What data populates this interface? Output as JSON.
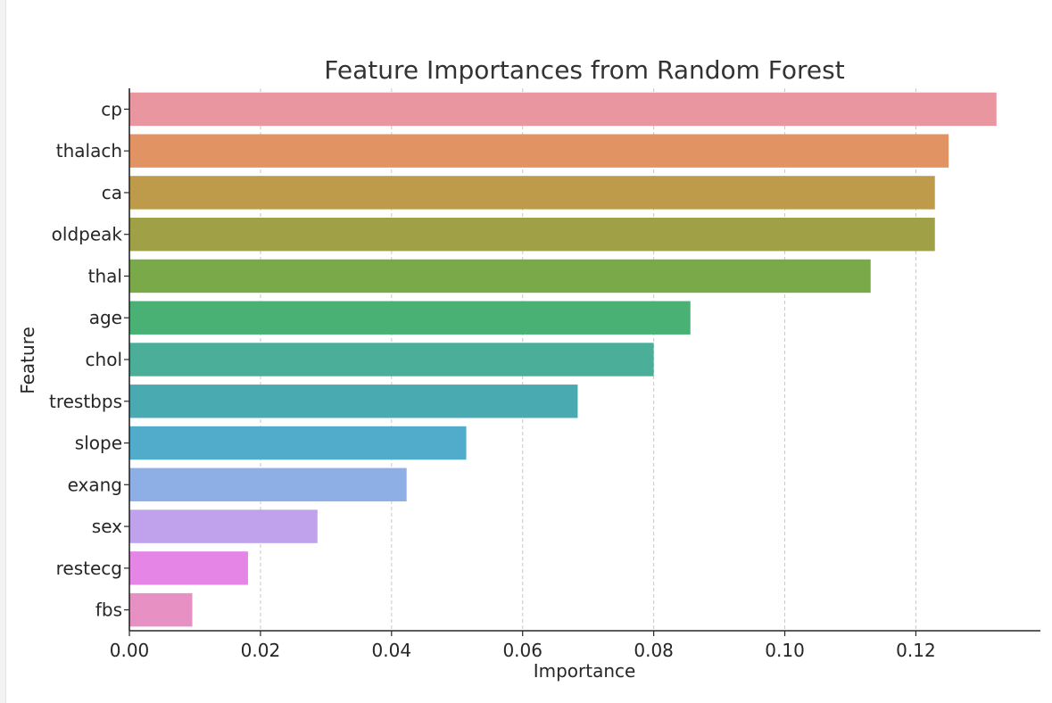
{
  "chart_data": {
    "type": "bar",
    "orientation": "horizontal",
    "title": "Feature Importances from Random Forest",
    "xlabel": "Importance",
    "ylabel": "Feature",
    "xlim": [
      0,
      0.139
    ],
    "xticks": [
      0.0,
      0.02,
      0.04,
      0.06,
      0.08,
      0.1,
      0.12
    ],
    "xtick_labels": [
      "0.00",
      "0.02",
      "0.04",
      "0.06",
      "0.08",
      "0.10",
      "0.12"
    ],
    "grid": "vertical dashed",
    "categories": [
      "cp",
      "thalach",
      "ca",
      "oldpeak",
      "thal",
      "age",
      "chol",
      "trestbps",
      "slope",
      "exang",
      "sex",
      "restecg",
      "fbs"
    ],
    "values": [
      0.1323,
      0.125,
      0.1229,
      0.1229,
      0.1131,
      0.0856,
      0.08,
      0.0684,
      0.0514,
      0.0423,
      0.0287,
      0.0181,
      0.0096
    ],
    "colors": [
      "#e996a0",
      "#e29363",
      "#bd9b4a",
      "#a0a046",
      "#7aa94a",
      "#48b173",
      "#4aae98",
      "#4aaab1",
      "#51abcb",
      "#8eaee6",
      "#bfa1ec",
      "#e586e6",
      "#e790c4"
    ]
  }
}
